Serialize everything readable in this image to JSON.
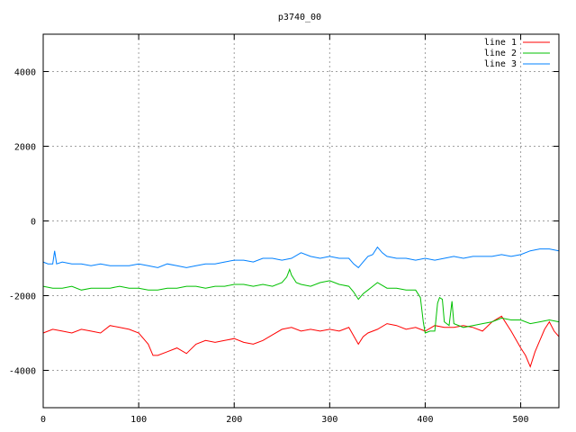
{
  "chart_data": {
    "type": "line",
    "title": "p3740_00",
    "xlabel": "",
    "ylabel": "",
    "xlim": [
      0,
      540
    ],
    "ylim": [
      -5000,
      5000
    ],
    "x_ticks": [
      0,
      100,
      200,
      300,
      400,
      500
    ],
    "y_ticks": [
      -4000,
      -2000,
      0,
      2000,
      4000
    ],
    "grid": true,
    "legend_position": "top-right",
    "series": [
      {
        "name": "line 1",
        "color": "#ff0000",
        "x": [
          0,
          10,
          20,
          30,
          40,
          50,
          60,
          70,
          80,
          90,
          100,
          105,
          110,
          115,
          120,
          130,
          140,
          150,
          160,
          170,
          180,
          190,
          200,
          210,
          220,
          230,
          240,
          250,
          260,
          270,
          280,
          290,
          300,
          310,
          320,
          330,
          335,
          340,
          350,
          360,
          370,
          380,
          390,
          400,
          410,
          420,
          430,
          440,
          450,
          460,
          470,
          480,
          490,
          500,
          505,
          510,
          515,
          520,
          525,
          530,
          535,
          540
        ],
        "y": [
          -3000,
          -2900,
          -2950,
          -3000,
          -2900,
          -2950,
          -3000,
          -2800,
          -2850,
          -2900,
          -3000,
          -3150,
          -3300,
          -3600,
          -3600,
          -3500,
          -3400,
          -3550,
          -3300,
          -3200,
          -3250,
          -3200,
          -3150,
          -3250,
          -3300,
          -3200,
          -3050,
          -2900,
          -2850,
          -2950,
          -2900,
          -2950,
          -2900,
          -2950,
          -2850,
          -3300,
          -3100,
          -3000,
          -2900,
          -2750,
          -2800,
          -2900,
          -2850,
          -2950,
          -2800,
          -2850,
          -2850,
          -2800,
          -2850,
          -2950,
          -2700,
          -2550,
          -2950,
          -3400,
          -3600,
          -3900,
          -3500,
          -3200,
          -2900,
          -2700,
          -2950,
          -3100
        ]
      },
      {
        "name": "line 2",
        "color": "#00c000",
        "x": [
          0,
          10,
          20,
          30,
          40,
          50,
          60,
          70,
          80,
          90,
          100,
          110,
          120,
          130,
          140,
          150,
          160,
          170,
          180,
          190,
          200,
          210,
          220,
          230,
          240,
          250,
          255,
          258,
          260,
          265,
          270,
          280,
          290,
          300,
          310,
          320,
          325,
          330,
          335,
          340,
          345,
          350,
          360,
          370,
          380,
          390,
          395,
          398,
          400,
          405,
          410,
          413,
          415,
          418,
          420,
          425,
          428,
          430,
          440,
          450,
          460,
          470,
          480,
          490,
          500,
          510,
          520,
          530,
          540
        ],
        "y": [
          -1750,
          -1800,
          -1800,
          -1750,
          -1850,
          -1800,
          -1800,
          -1800,
          -1750,
          -1800,
          -1800,
          -1850,
          -1850,
          -1800,
          -1800,
          -1750,
          -1750,
          -1800,
          -1750,
          -1750,
          -1700,
          -1700,
          -1750,
          -1700,
          -1750,
          -1650,
          -1500,
          -1300,
          -1450,
          -1650,
          -1700,
          -1750,
          -1650,
          -1600,
          -1700,
          -1750,
          -1900,
          -2100,
          -1950,
          -1850,
          -1750,
          -1650,
          -1800,
          -1800,
          -1850,
          -1850,
          -2050,
          -2700,
          -3000,
          -2950,
          -2950,
          -2200,
          -2050,
          -2100,
          -2700,
          -2800,
          -2150,
          -2750,
          -2850,
          -2800,
          -2750,
          -2700,
          -2600,
          -2650,
          -2650,
          -2750,
          -2700,
          -2650,
          -2700
        ]
      },
      {
        "name": "line 3",
        "color": "#0080ff",
        "x": [
          0,
          5,
          10,
          12,
          14,
          20,
          30,
          40,
          50,
          60,
          70,
          80,
          90,
          100,
          110,
          120,
          130,
          140,
          150,
          160,
          170,
          180,
          190,
          200,
          210,
          220,
          230,
          240,
          250,
          260,
          270,
          280,
          290,
          300,
          310,
          320,
          325,
          330,
          335,
          340,
          345,
          350,
          355,
          360,
          370,
          380,
          390,
          400,
          410,
          420,
          430,
          440,
          450,
          460,
          470,
          480,
          490,
          500,
          510,
          520,
          530,
          540
        ],
        "y": [
          -1100,
          -1150,
          -1150,
          -800,
          -1150,
          -1100,
          -1150,
          -1150,
          -1200,
          -1150,
          -1200,
          -1200,
          -1200,
          -1150,
          -1200,
          -1250,
          -1150,
          -1200,
          -1250,
          -1200,
          -1150,
          -1150,
          -1100,
          -1050,
          -1050,
          -1100,
          -1000,
          -1000,
          -1050,
          -1000,
          -850,
          -950,
          -1000,
          -950,
          -1000,
          -1000,
          -1150,
          -1250,
          -1100,
          -950,
          -900,
          -700,
          -850,
          -950,
          -1000,
          -1000,
          -1050,
          -1000,
          -1050,
          -1000,
          -950,
          -1000,
          -950,
          -950,
          -950,
          -900,
          -950,
          -900,
          -800,
          -750,
          -750,
          -800
        ]
      }
    ]
  }
}
